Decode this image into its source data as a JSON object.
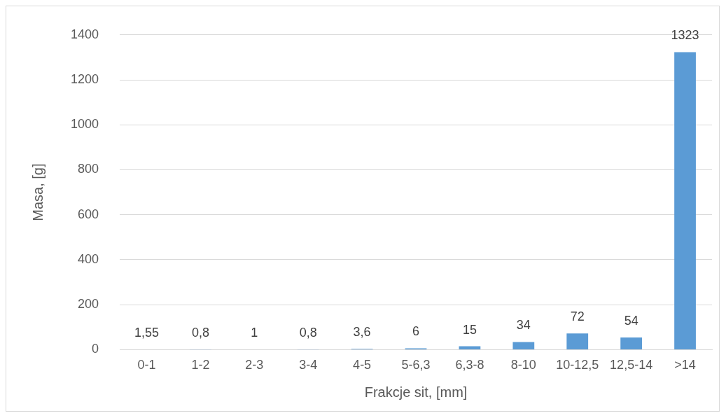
{
  "chart_data": {
    "type": "bar",
    "xlabel": "Frakcje sit, [mm]",
    "ylabel": "Masa, [g]",
    "categories": [
      "0-1",
      "1-2",
      "2-3",
      "3-4",
      "4-5",
      "5-6,3",
      "6,3-8",
      "8-10",
      "10-12,5",
      "12,5-14",
      ">14"
    ],
    "values": [
      1.55,
      0.8,
      1,
      0.8,
      3.6,
      6,
      15,
      34,
      72,
      54,
      1323
    ],
    "value_labels": [
      "1,55",
      "0,8",
      "1",
      "0,8",
      "3,6",
      "6",
      "15",
      "34",
      "72",
      "54",
      "1323"
    ],
    "color": "#5b9bd5",
    "ylim": [
      0,
      1400
    ],
    "yticks": [
      0,
      200,
      400,
      600,
      800,
      1000,
      1200,
      1400
    ],
    "grid": "y"
  }
}
